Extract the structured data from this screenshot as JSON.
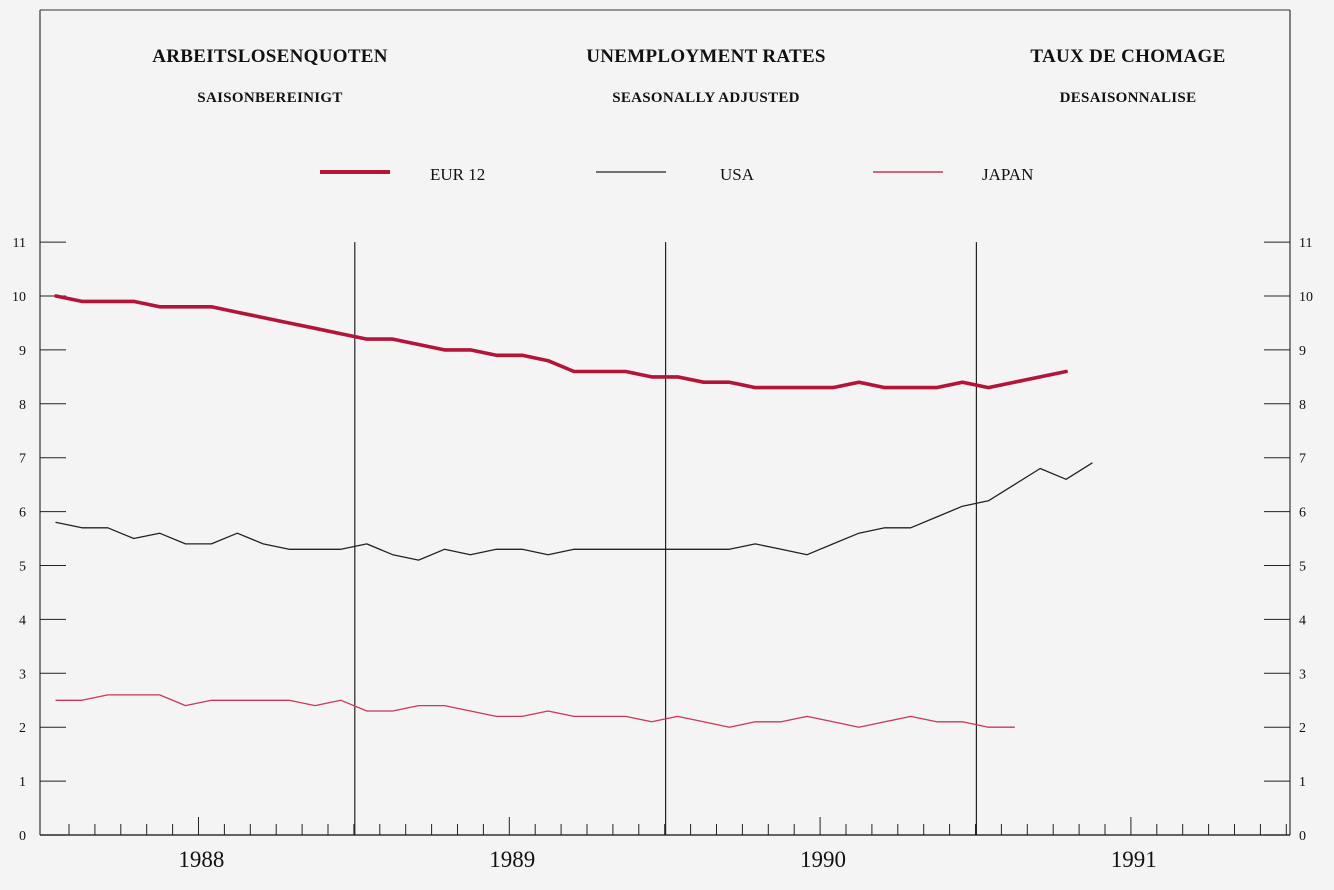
{
  "header": {
    "titles": [
      "ARBEITSLOSENQUOTEN",
      "UNEMPLOYMENT RATES",
      "TAUX DE CHOMAGE"
    ],
    "subtitles": [
      "SAISONBEREINIGT",
      "SEASONALLY ADJUSTED",
      "DESAISONNALISE"
    ]
  },
  "chart_data": {
    "type": "line",
    "title": "UNEMPLOYMENT RATES",
    "subtitle": "SEASONALLY ADJUSTED",
    "xlabel": "",
    "ylabel": "",
    "x_start": "1988-01",
    "years": [
      "1988",
      "1989",
      "1990",
      "1991"
    ],
    "ylim": [
      0,
      11
    ],
    "yticks": [
      "0",
      "1",
      "2",
      "3",
      "4",
      "5",
      "6",
      "7",
      "8",
      "9",
      "10",
      "11"
    ],
    "grid": "vertical lines at year boundaries",
    "legend_position": "top",
    "series": [
      {
        "name": "EUR 12",
        "color": "#b3153a",
        "style": "thick",
        "values": [
          10.0,
          9.9,
          9.9,
          9.9,
          9.8,
          9.8,
          9.8,
          9.7,
          9.6,
          9.5,
          9.4,
          9.3,
          9.2,
          9.2,
          9.1,
          9.0,
          9.0,
          8.9,
          8.9,
          8.8,
          8.6,
          8.6,
          8.6,
          8.5,
          8.5,
          8.4,
          8.4,
          8.3,
          8.3,
          8.3,
          8.3,
          8.4,
          8.3,
          8.3,
          8.3,
          8.4,
          8.3,
          8.4,
          8.5,
          8.6
        ]
      },
      {
        "name": "USA",
        "color": "#222222",
        "style": "thin",
        "values": [
          5.8,
          5.7,
          5.7,
          5.5,
          5.6,
          5.4,
          5.4,
          5.6,
          5.4,
          5.3,
          5.3,
          5.3,
          5.4,
          5.2,
          5.1,
          5.3,
          5.2,
          5.3,
          5.3,
          5.2,
          5.3,
          5.3,
          5.3,
          5.3,
          5.3,
          5.3,
          5.3,
          5.4,
          5.3,
          5.2,
          5.4,
          5.6,
          5.7,
          5.7,
          5.9,
          6.1,
          6.2,
          6.5,
          6.8,
          6.6,
          6.9
        ]
      },
      {
        "name": "JAPAN",
        "color": "#c8385a",
        "style": "thin",
        "values": [
          2.5,
          2.5,
          2.6,
          2.6,
          2.6,
          2.4,
          2.5,
          2.5,
          2.5,
          2.5,
          2.4,
          2.5,
          2.3,
          2.3,
          2.4,
          2.4,
          2.3,
          2.2,
          2.2,
          2.3,
          2.2,
          2.2,
          2.2,
          2.1,
          2.2,
          2.1,
          2.0,
          2.1,
          2.1,
          2.2,
          2.1,
          2.0,
          2.1,
          2.2,
          2.1,
          2.1,
          2.0,
          2.0
        ]
      }
    ]
  }
}
